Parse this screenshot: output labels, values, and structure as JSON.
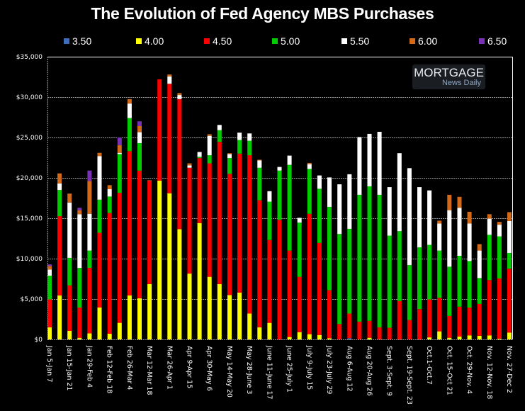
{
  "chart_data": {
    "type": "bar",
    "stacked": true,
    "title": "The Evolution of Fed Agency MBS Purchases",
    "xlabel": "",
    "ylabel": "",
    "ylim": [
      0,
      35000
    ],
    "yticks": [
      0,
      5000,
      10000,
      15000,
      20000,
      25000,
      30000,
      35000
    ],
    "ytick_labels": [
      "$0",
      "$5,000",
      "$10,000",
      "$15,000",
      "$20,000",
      "$25,000",
      "$30,000",
      "$35,000"
    ],
    "grid": true,
    "legend_position": "top",
    "legend": [
      {
        "name": "3.50",
        "color": "#3a6ebd"
      },
      {
        "name": "4.00",
        "color": "#ffff00"
      },
      {
        "name": "4.50",
        "color": "#ff0000"
      },
      {
        "name": "5.00",
        "color": "#00cc00"
      },
      {
        "name": "5.50",
        "color": "#ffffff"
      },
      {
        "name": "6.00",
        "color": "#d26a1a"
      },
      {
        "name": "6.50",
        "color": "#7a32b4"
      }
    ],
    "categories": [
      "Jan 5-Jan 7",
      "",
      "Jan 15-Jan 21",
      "",
      "Jan 29-Feb 4",
      "",
      "Feb 12-Feb 18",
      "",
      "Feb 26-Mar 4",
      "",
      "Mar 12-Mar 18",
      "",
      "Mar 26-Apr 1",
      "",
      "Apr 9-Apr 15",
      "",
      "Apr 30-May 6",
      "",
      "May 14-May 20",
      "",
      "May 28-June 3",
      "",
      "June 11-June 17",
      "",
      "June 25-July 1",
      "",
      "July 9-July 15",
      "",
      "July 23-July 29",
      "",
      "Aug 6-Aug 12",
      "",
      "Aug 20-Aug 26",
      "",
      "Sept. 3-Sept. 9",
      "",
      "Sept. 19-Sept. 23",
      "",
      "Oct.1-Oct.7",
      "",
      "Oct. 15-Oct 21",
      "",
      "Oct. 29-Nov. 4",
      "",
      "Nov. 12-Nov. 18",
      "",
      "Nov. 27-Dec 2"
    ],
    "series": [
      {
        "name": "3.50",
        "values": [
          0,
          0,
          0,
          0,
          0,
          0,
          0,
          0,
          0,
          0,
          0,
          0,
          0,
          0,
          0,
          0,
          0,
          0,
          0,
          0,
          0,
          0,
          0,
          0,
          0,
          0,
          0,
          0,
          0,
          0,
          150,
          0,
          0,
          0,
          0,
          0,
          0,
          0,
          0,
          0,
          0,
          0,
          0,
          0,
          0,
          0,
          0
        ]
      },
      {
        "name": "4.00",
        "values": [
          1500,
          5450,
          1050,
          200,
          750,
          3950,
          700,
          2050,
          5450,
          5100,
          6850,
          19650,
          18100,
          13650,
          8150,
          14400,
          7750,
          6850,
          5500,
          5800,
          3200,
          1500,
          2050,
          0,
          300,
          900,
          650,
          550,
          150,
          0,
          0,
          0,
          200,
          0,
          0,
          0,
          0,
          0,
          250,
          1000,
          200,
          350,
          500,
          450,
          500,
          100,
          850
        ]
      },
      {
        "name": "4.50",
        "values": [
          3450,
          9800,
          5650,
          3750,
          8100,
          9250,
          14950,
          16100,
          17850,
          15800,
          12800,
          12550,
          13550,
          16100,
          13100,
          8050,
          14050,
          17600,
          15000,
          17200,
          19600,
          15750,
          10250,
          14800,
          10700,
          6850,
          14900,
          11400,
          5950,
          1900,
          3050,
          2200,
          2100,
          1500,
          1450,
          4750,
          2400,
          3750,
          4700,
          4150,
          2700,
          3700,
          3450,
          3950,
          6850,
          7450,
          7900
        ]
      },
      {
        "name": "5.00",
        "values": [
          2950,
          3250,
          3400,
          4900,
          2150,
          4100,
          2050,
          4800,
          4100,
          3400,
          0,
          0,
          0,
          0,
          0,
          150,
          1000,
          1450,
          1950,
          1700,
          1800,
          4000,
          4750,
          6100,
          10600,
          6700,
          5550,
          6700,
          10300,
          11150,
          10500,
          15700,
          16650,
          16400,
          11400,
          8650,
          6800,
          7650,
          6750,
          5850,
          6100,
          6300,
          5750,
          3200,
          5600,
          5200,
          1950
        ]
      },
      {
        "name": "5.50",
        "values": [
          750,
          800,
          6850,
          6650,
          4550,
          5400,
          900,
          150,
          1800,
          1350,
          0,
          0,
          900,
          500,
          300,
          600,
          2400,
          650,
          500,
          900,
          900,
          900,
          1300,
          450,
          1150,
          600,
          600,
          1650,
          3650,
          6150,
          6750,
          7150,
          6500,
          7800,
          6000,
          9650,
          12000,
          7450,
          6750,
          3350,
          7000,
          5950,
          4650,
          3400,
          2000,
          1450,
          3950
        ]
      },
      {
        "name": "6.00",
        "values": [
          450,
          1250,
          1100,
          500,
          4050,
          400,
          500,
          950,
          550,
          750,
          50,
          0,
          250,
          250,
          250,
          0,
          200,
          0,
          100,
          0,
          0,
          100,
          0,
          0,
          0,
          0,
          150,
          0,
          0,
          0,
          0,
          0,
          0,
          0,
          0,
          0,
          0,
          0,
          0,
          350,
          1900,
          1350,
          1450,
          800,
          550,
          350,
          1100
        ]
      },
      {
        "name": "6.50",
        "values": [
          200,
          0,
          0,
          300,
          1300,
          0,
          0,
          950,
          0,
          600,
          0,
          0,
          0,
          0,
          0,
          0,
          0,
          0,
          0,
          0,
          0,
          0,
          0,
          0,
          0,
          0,
          0,
          0,
          0,
          0,
          0,
          0,
          0,
          0,
          0,
          0,
          0,
          0,
          0,
          0,
          0,
          0,
          0,
          0,
          0,
          0,
          0
        ]
      }
    ]
  },
  "logo": {
    "line1": "MORTGAGE",
    "line2": "News Daily"
  }
}
